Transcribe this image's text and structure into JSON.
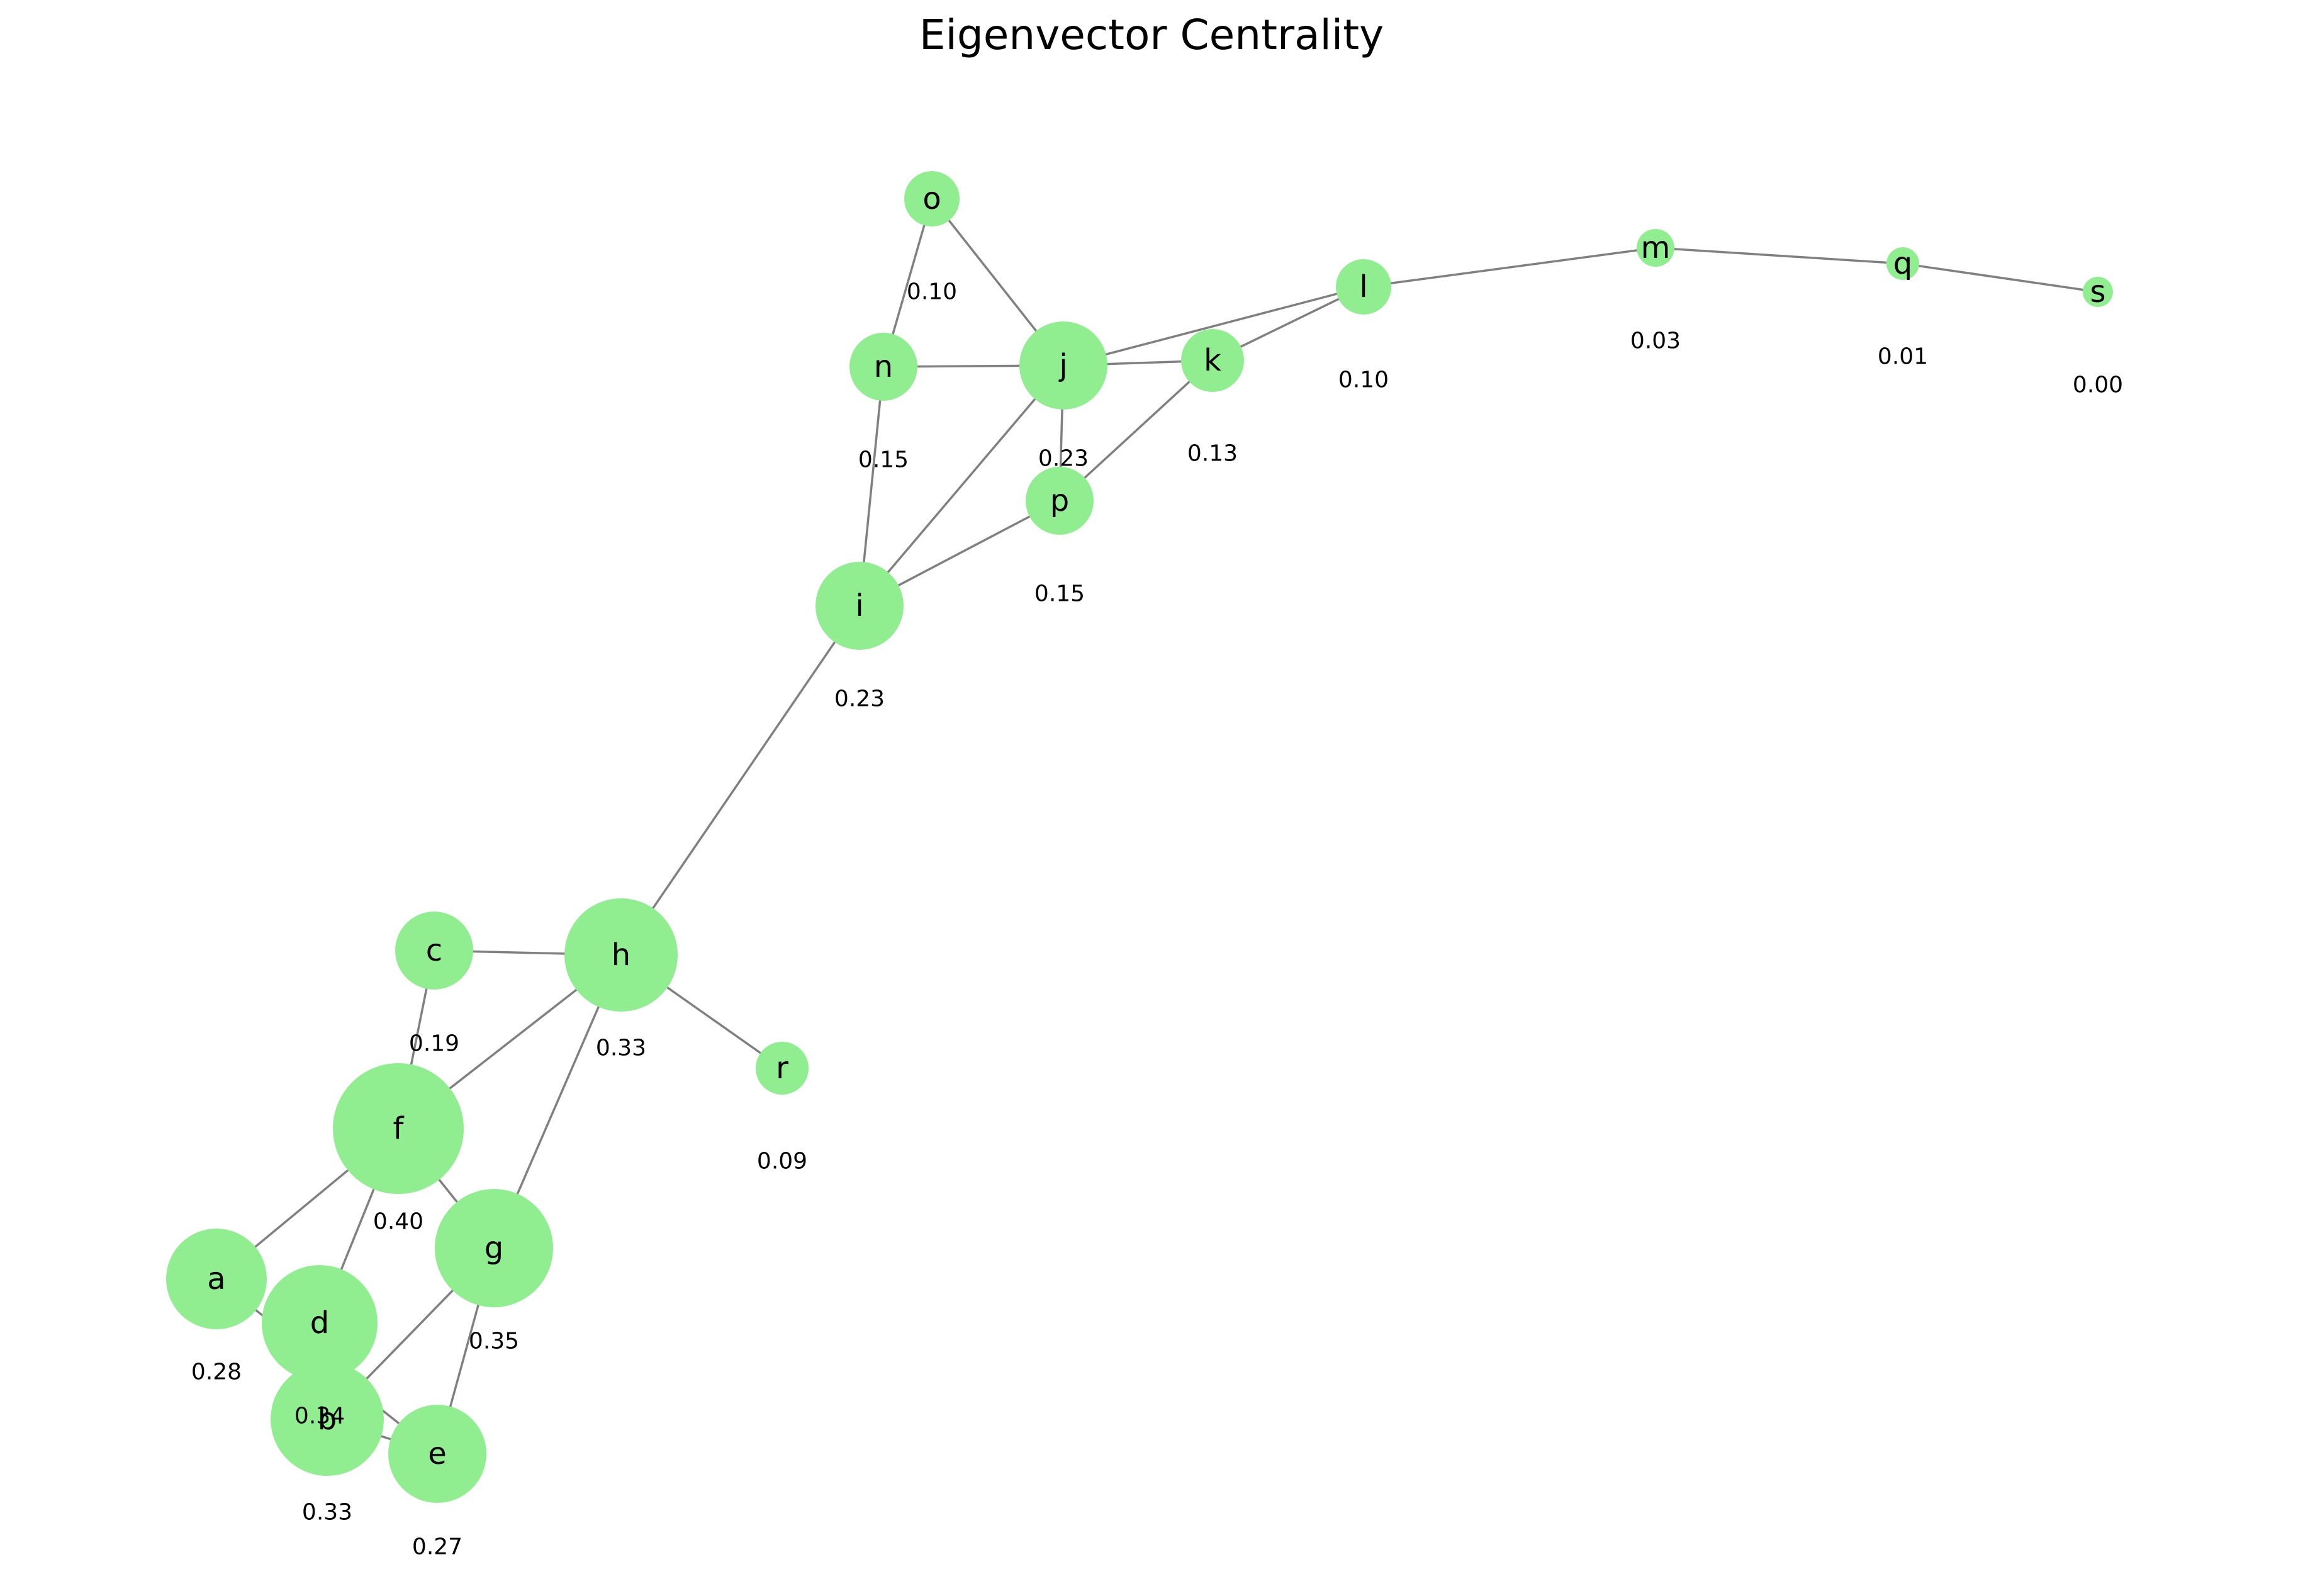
{
  "title": "Eigenvector Centrality",
  "colors": {
    "node": "#90ee90",
    "edge": "#808080",
    "text": "#000000"
  },
  "nodes": [
    {
      "id": "a",
      "label": "a",
      "centrality": "0.28",
      "value": 0.28
    },
    {
      "id": "b",
      "label": "b",
      "centrality": "0.33",
      "value": 0.33
    },
    {
      "id": "c",
      "label": "c",
      "centrality": "0.19",
      "value": 0.19
    },
    {
      "id": "d",
      "label": "d",
      "centrality": "0.34",
      "value": 0.34
    },
    {
      "id": "e",
      "label": "e",
      "centrality": "0.27",
      "value": 0.27
    },
    {
      "id": "f",
      "label": "f",
      "centrality": "0.40",
      "value": 0.4
    },
    {
      "id": "g",
      "label": "g",
      "centrality": "0.35",
      "value": 0.35
    },
    {
      "id": "h",
      "label": "h",
      "centrality": "0.33",
      "value": 0.33
    },
    {
      "id": "i",
      "label": "i",
      "centrality": "0.23",
      "value": 0.23
    },
    {
      "id": "j",
      "label": "j",
      "centrality": "0.23",
      "value": 0.23
    },
    {
      "id": "k",
      "label": "k",
      "centrality": "0.13",
      "value": 0.13
    },
    {
      "id": "l",
      "label": "l",
      "centrality": "0.10",
      "value": 0.1
    },
    {
      "id": "m",
      "label": "m",
      "centrality": "0.03",
      "value": 0.03
    },
    {
      "id": "n",
      "label": "n",
      "centrality": "0.15",
      "value": 0.15
    },
    {
      "id": "o",
      "label": "o",
      "centrality": "0.10",
      "value": 0.1
    },
    {
      "id": "p",
      "label": "p",
      "centrality": "0.15",
      "value": 0.15
    },
    {
      "id": "q",
      "label": "q",
      "centrality": "0.01",
      "value": 0.01
    },
    {
      "id": "r",
      "label": "r",
      "centrality": "0.09",
      "value": 0.09
    },
    {
      "id": "s",
      "label": "s",
      "centrality": "0.00",
      "value": 0.0
    }
  ],
  "edges": [
    [
      "a",
      "f"
    ],
    [
      "a",
      "e"
    ],
    [
      "b",
      "d"
    ],
    [
      "b",
      "e"
    ],
    [
      "b",
      "g"
    ],
    [
      "c",
      "h"
    ],
    [
      "c",
      "f"
    ],
    [
      "d",
      "f"
    ],
    [
      "e",
      "g"
    ],
    [
      "f",
      "g"
    ],
    [
      "f",
      "h"
    ],
    [
      "g",
      "h"
    ],
    [
      "h",
      "i"
    ],
    [
      "h",
      "r"
    ],
    [
      "i",
      "n"
    ],
    [
      "i",
      "j"
    ],
    [
      "i",
      "p"
    ],
    [
      "j",
      "n"
    ],
    [
      "j",
      "o"
    ],
    [
      "j",
      "k"
    ],
    [
      "j",
      "l"
    ],
    [
      "j",
      "p"
    ],
    [
      "k",
      "l"
    ],
    [
      "k",
      "p"
    ],
    [
      "l",
      "m"
    ],
    [
      "m",
      "q"
    ],
    [
      "n",
      "o"
    ],
    [
      "q",
      "s"
    ]
  ]
}
